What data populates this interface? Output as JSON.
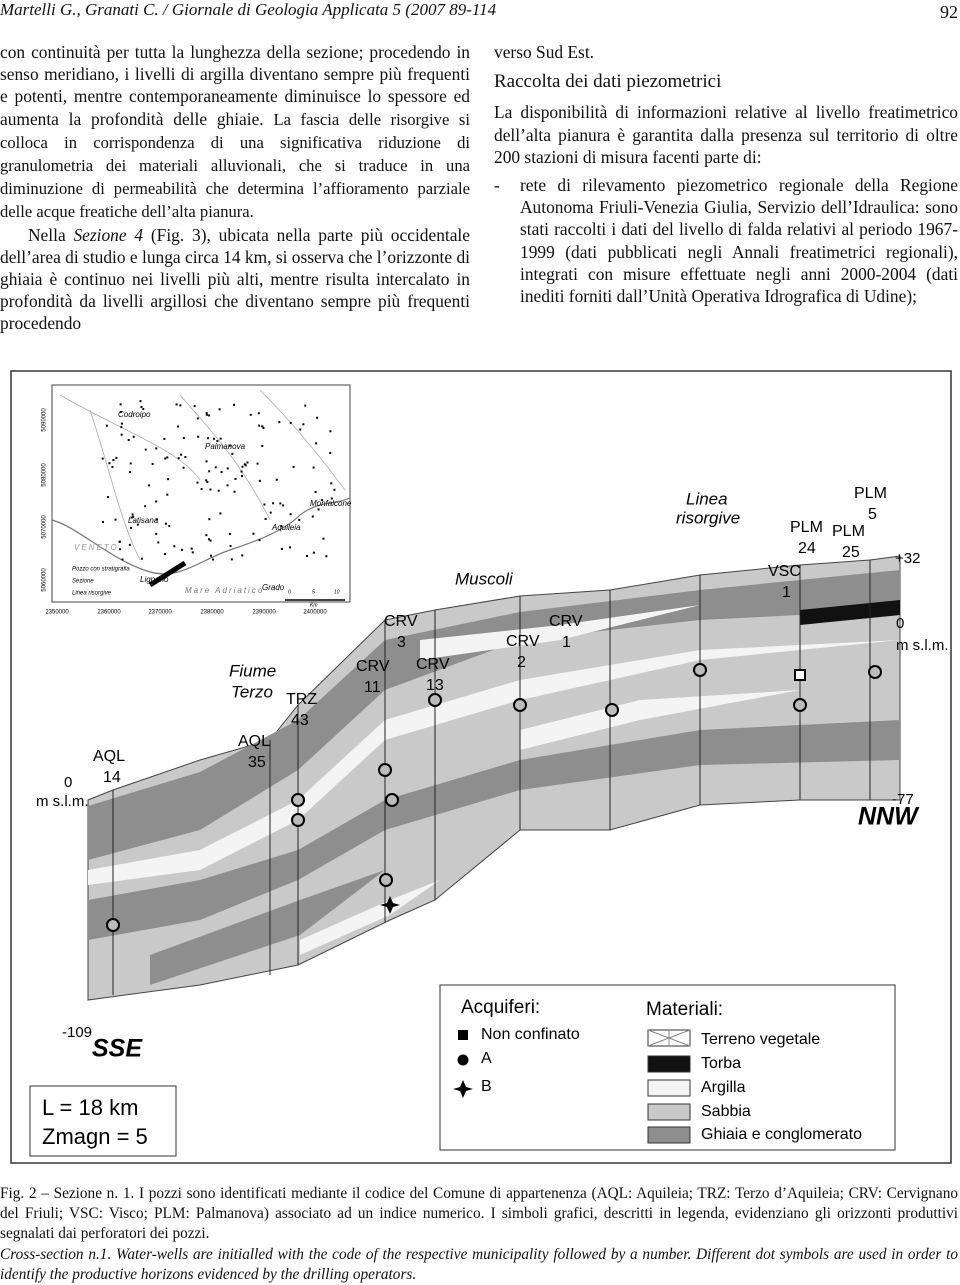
{
  "header": {
    "running_title": "Martelli G., Granati C. / Giornale di Geologia Applicata 5 (2007 89-114",
    "page_number": "92"
  },
  "left_column": {
    "paragraph_1": [
      "con continuità per tutta la lunghezza della sezione; procedendo in senso meridiano, i livelli di argilla diventano sempre più frequenti e potenti, mentre contemporaneamente diminuisce lo spessore ed aumenta la profondità delle ghiaie.",
      "La fascia delle risorgive si colloca in corrispondenza di una significativa riduzione di granulometria dei materiali alluvionali, che si traduce in una diminuzione di permeabilità che determina l’affioramento parziale delle acque freatiche dell’alta pianura."
    ],
    "paragraph_2": [
      "Nella",
      "Sezione 4",
      "(Fig. 3), ubicata nella parte più occidentale dell’area di studio e lunga circa 14 km, si osserva che l’orizzonte di ghiaia è continuo nei livelli più alti, mentre risulta intercalato in profondità da livelli argillosi che diventano sempre più frequenti procedendo"
    ]
  },
  "right_column": {
    "continuation": "verso Sud Est.",
    "heading": "Raccolta dei dati piezometrici",
    "paragraph": "La disponibilità di informazioni relative al livello freatimetrico dell’alta pianura è garantita dalla presenza sul territorio di oltre 200 stazioni di misura facenti parte di:",
    "list": [
      {
        "bullet": "-",
        "text": "rete di rilevamento piezometrico regionale della Regione Autonoma Friuli-Venezia Giulia, Servizio dell’Idraulica: sono stati raccolti i dati del livello di falda relativi al periodo 1967-1999 (dati pubblicati negli Annali freatimetrici regionali), integrati con misure effettuate negli anni 2000-2004 (dati inediti forniti dall’Unità Operativa Idrografica di Udine);"
      }
    ]
  },
  "figure": {
    "map": {
      "places": [
        "Codroipo",
        "Palmanova",
        "Latisana",
        "Aquileia",
        "Monfalcone",
        "Lignano",
        "Grado"
      ],
      "region": "VENETO",
      "sea": "Mare Adriatico",
      "legend": [
        "Pozzo con stratigrafia",
        "Sezione",
        "Linea risorgive"
      ],
      "northings": [
        "5090000",
        "5080000",
        "5070000",
        "5060000"
      ],
      "eastings": [
        "2350000",
        "2360000",
        "2370000",
        "2380000",
        "2390000",
        "2400000"
      ],
      "scale": {
        "ticks": [
          "0",
          "5",
          "10"
        ],
        "unit": "Km"
      }
    },
    "section": {
      "wells": [
        [
          "AQL",
          "14"
        ],
        [
          "AQL",
          "35"
        ],
        [
          "TRZ",
          "43"
        ],
        [
          "CRV",
          "11"
        ],
        [
          "CRV",
          "3"
        ],
        [
          "CRV",
          "13"
        ],
        [
          "CRV",
          "2"
        ],
        [
          "CRV",
          "1"
        ],
        [
          "VSC",
          "1"
        ],
        [
          "PLM",
          "24"
        ],
        [
          "PLM",
          "25"
        ],
        [
          "PLM",
          "5"
        ]
      ],
      "river": [
        "Fiume",
        "Terzo"
      ],
      "village": "Muscoli",
      "springs": [
        "Linea",
        "risorgive"
      ],
      "left_zero": [
        "0",
        "m s.l.m."
      ],
      "right_zero": [
        "0",
        "m s.l.m."
      ],
      "top_right": "+32",
      "bottom_right": "-77",
      "bottom_left": "-109",
      "directions": [
        "SSE",
        "NNW"
      ],
      "scale_box": [
        "L = 18 km",
        "Zmagn = 5"
      ]
    },
    "legend": {
      "aquifers_title": "Acquiferi:",
      "aquifers": [
        "Non confinato",
        "A",
        "B"
      ],
      "materials_title": "Materiali:",
      "materials": [
        "Terreno vegetale",
        "Torba",
        "Argilla",
        "Sabbia",
        "Ghiaia e conglomerato"
      ]
    },
    "caption": "Fig. 2 – Sezione n. 1. I pozzi sono identificati mediante il codice del Comune di appartenenza (AQL: Aquileia; TRZ: Terzo d’Aquileia; CRV: Cervignano del Friuli; VSC: Visco; PLM: Palmanova) associato ad un indice numerico. I simboli grafici, descritti in legenda, evidenziano gli orizzonti produttivi segnalati dai perforatori dei pozzi.",
    "caption_en": "Cross-section n.1. Water-wells are initialled with the code of the respective municipality followed by a number. Different dot symbols are used in order to identify the productive horizons evidenced by the drilling operators."
  }
}
